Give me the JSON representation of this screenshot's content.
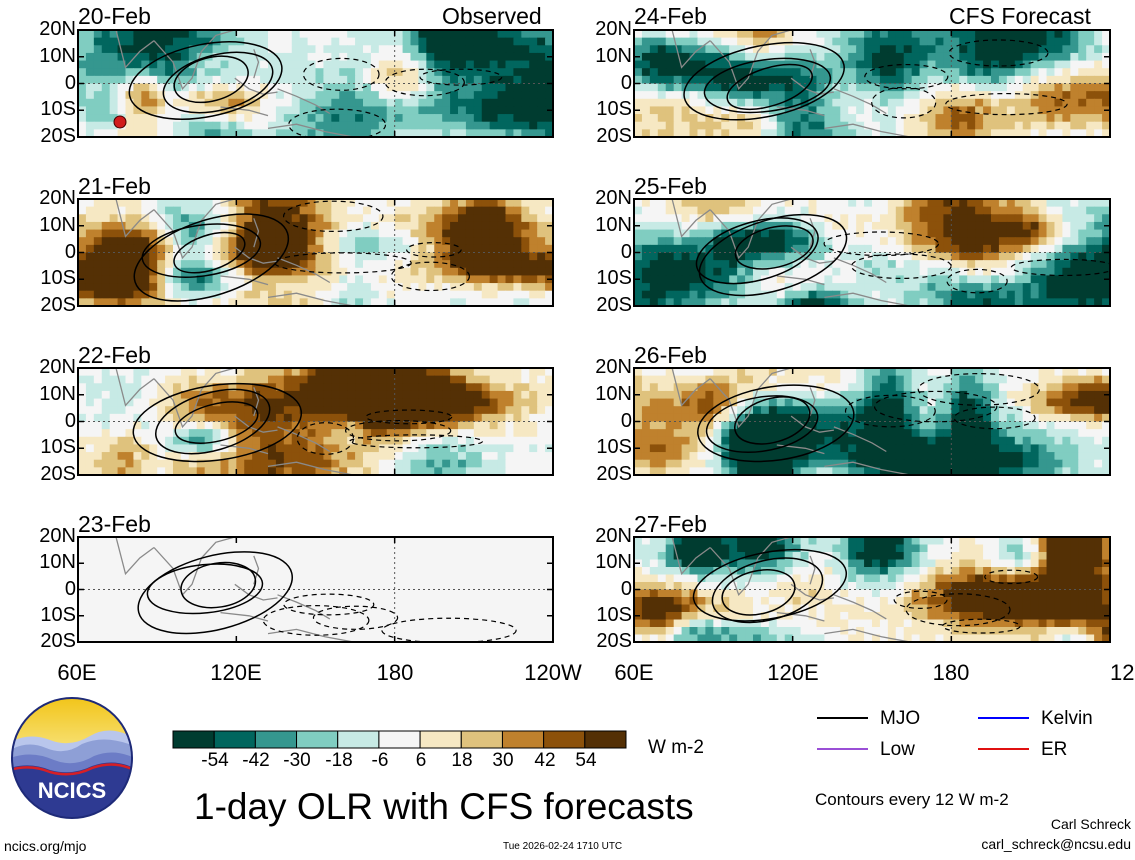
{
  "chart_data": {
    "type": "heatmap",
    "title": "1-day OLR with CFS forecasts",
    "units": "W m-2",
    "contour_note": "Contours every 12 W m-2",
    "lat_ticks": [
      "20N",
      "10N",
      "0",
      "10S",
      "20S"
    ],
    "lat_values": [
      20,
      10,
      0,
      -10,
      -20
    ],
    "lon_ticks": [
      "60E",
      "120E",
      "180",
      "120W"
    ],
    "lon_values": [
      60,
      120,
      180,
      240
    ],
    "lon_range": [
      60,
      240
    ],
    "lat_range": [
      -20,
      20
    ],
    "colorbar": {
      "labels": [
        "-54",
        "-42",
        "-30",
        "-18",
        "-6",
        "6",
        "18",
        "30",
        "42",
        "54"
      ],
      "colors": [
        "#003c30",
        "#01665e",
        "#35978f",
        "#80cdc1",
        "#c7eae5",
        "#f5f5f5",
        "#f6e8c3",
        "#dfc27d",
        "#bf812d",
        "#8c510a",
        "#543005"
      ]
    },
    "observed": {
      "label": "Observed",
      "panels": [
        {
          "date": "20-Feb",
          "seed": 11,
          "blank": false
        },
        {
          "date": "21-Feb",
          "seed": 23,
          "blank": false
        },
        {
          "date": "22-Feb",
          "seed": 37,
          "blank": false
        },
        {
          "date": "23-Feb",
          "seed": 41,
          "blank": true
        }
      ]
    },
    "forecast": {
      "label": "CFS Forecast",
      "panels": [
        {
          "date": "24-Feb",
          "seed": 53,
          "blank": false
        },
        {
          "date": "25-Feb",
          "seed": 67,
          "blank": false
        },
        {
          "date": "26-Feb",
          "seed": 79,
          "blank": false
        },
        {
          "date": "27-Feb",
          "seed": 97,
          "blank": false
        }
      ]
    },
    "legend": [
      {
        "name": "MJO",
        "color": "#000000"
      },
      {
        "name": "Kelvin",
        "color": "#0000ff"
      },
      {
        "name": "Low",
        "color": "#9a4fd6"
      },
      {
        "name": "ER",
        "color": "#e01010"
      }
    ]
  },
  "branding": {
    "logo_text": "NCICS",
    "url": "ncics.org/mjo",
    "timestamp": "Tue 2026-02-24 1710 UTC",
    "author": "Carl Schreck",
    "email": "carl_schreck@ncsu.edu"
  }
}
